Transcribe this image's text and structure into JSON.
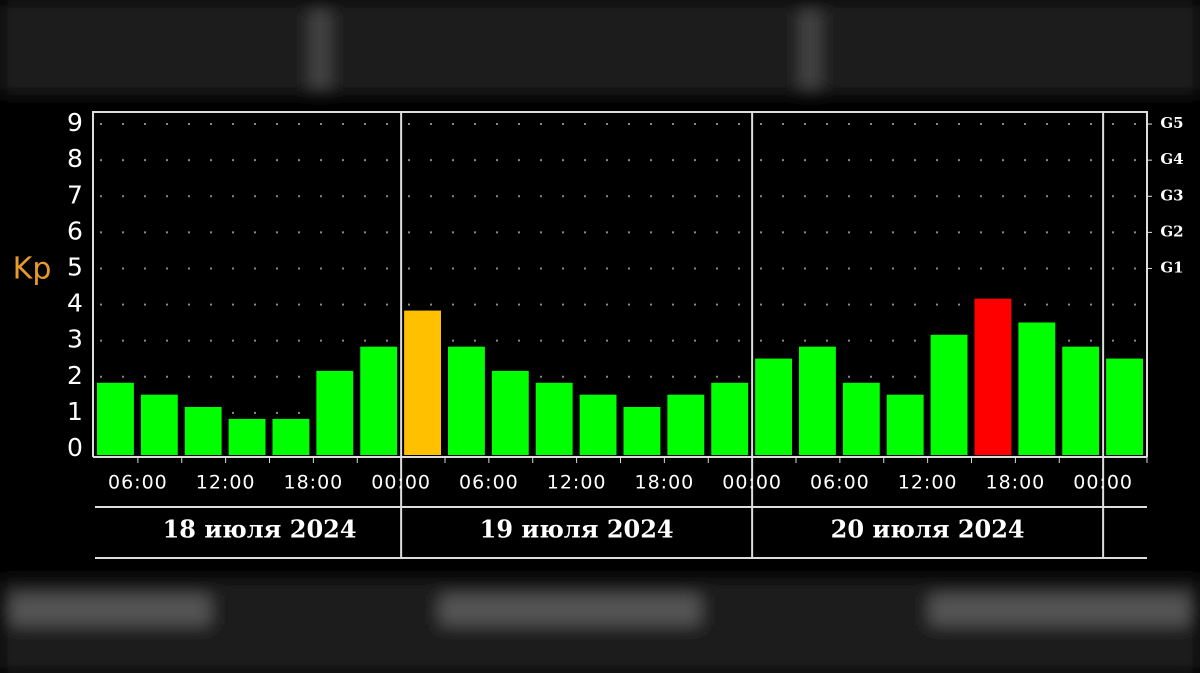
{
  "chart_data": {
    "type": "bar",
    "y_label": "Kp",
    "categories": [
      null,
      null,
      null,
      null,
      null,
      null,
      null,
      null,
      null,
      null,
      null,
      null,
      null,
      null,
      null,
      null,
      null,
      null,
      null,
      null,
      null,
      null,
      null,
      null
    ],
    "values": [
      2,
      1.67,
      1.33,
      1,
      1,
      2.33,
      3,
      4,
      3,
      2.33,
      2,
      1.67,
      1.33,
      1.67,
      2,
      2.67,
      3,
      2,
      1.67,
      3.33,
      4.33,
      3.67,
      3,
      2.67
    ],
    "colors": [
      "#00ff00",
      "#00ff00",
      "#00ff00",
      "#00ff00",
      "#00ff00",
      "#00ff00",
      "#00ff00",
      "#ffc000",
      "#00ff00",
      "#00ff00",
      "#00ff00",
      "#00ff00",
      "#00ff00",
      "#00ff00",
      "#00ff00",
      "#00ff00",
      "#00ff00",
      "#00ff00",
      "#00ff00",
      "#00ff00",
      "#ff0000",
      "#00ff00",
      "#00ff00",
      "#00ff00"
    ],
    "time_labels": [
      "06:00",
      "12:00",
      "18:00",
      "00:00",
      "06:00",
      "12:00",
      "18:00",
      "00:00",
      "06:00",
      "12:00",
      "18:00",
      "00:00"
    ],
    "dates": [
      "18 июля 2024",
      "19 июля 2024",
      "20 июля 2024"
    ],
    "ylim": [
      0,
      9.5
    ],
    "yticks": [
      0,
      1,
      2,
      3,
      4,
      5,
      6,
      7,
      8,
      9
    ],
    "y2lim": [
      0,
      9.5
    ],
    "y2ticks": [
      {
        "value": 5,
        "label": "G1"
      },
      {
        "value": 6,
        "label": "G2"
      },
      {
        "value": 7,
        "label": "G3"
      },
      {
        "value": 8,
        "label": "G4"
      },
      {
        "value": 9,
        "label": "G5"
      }
    ],
    "grid": true
  }
}
